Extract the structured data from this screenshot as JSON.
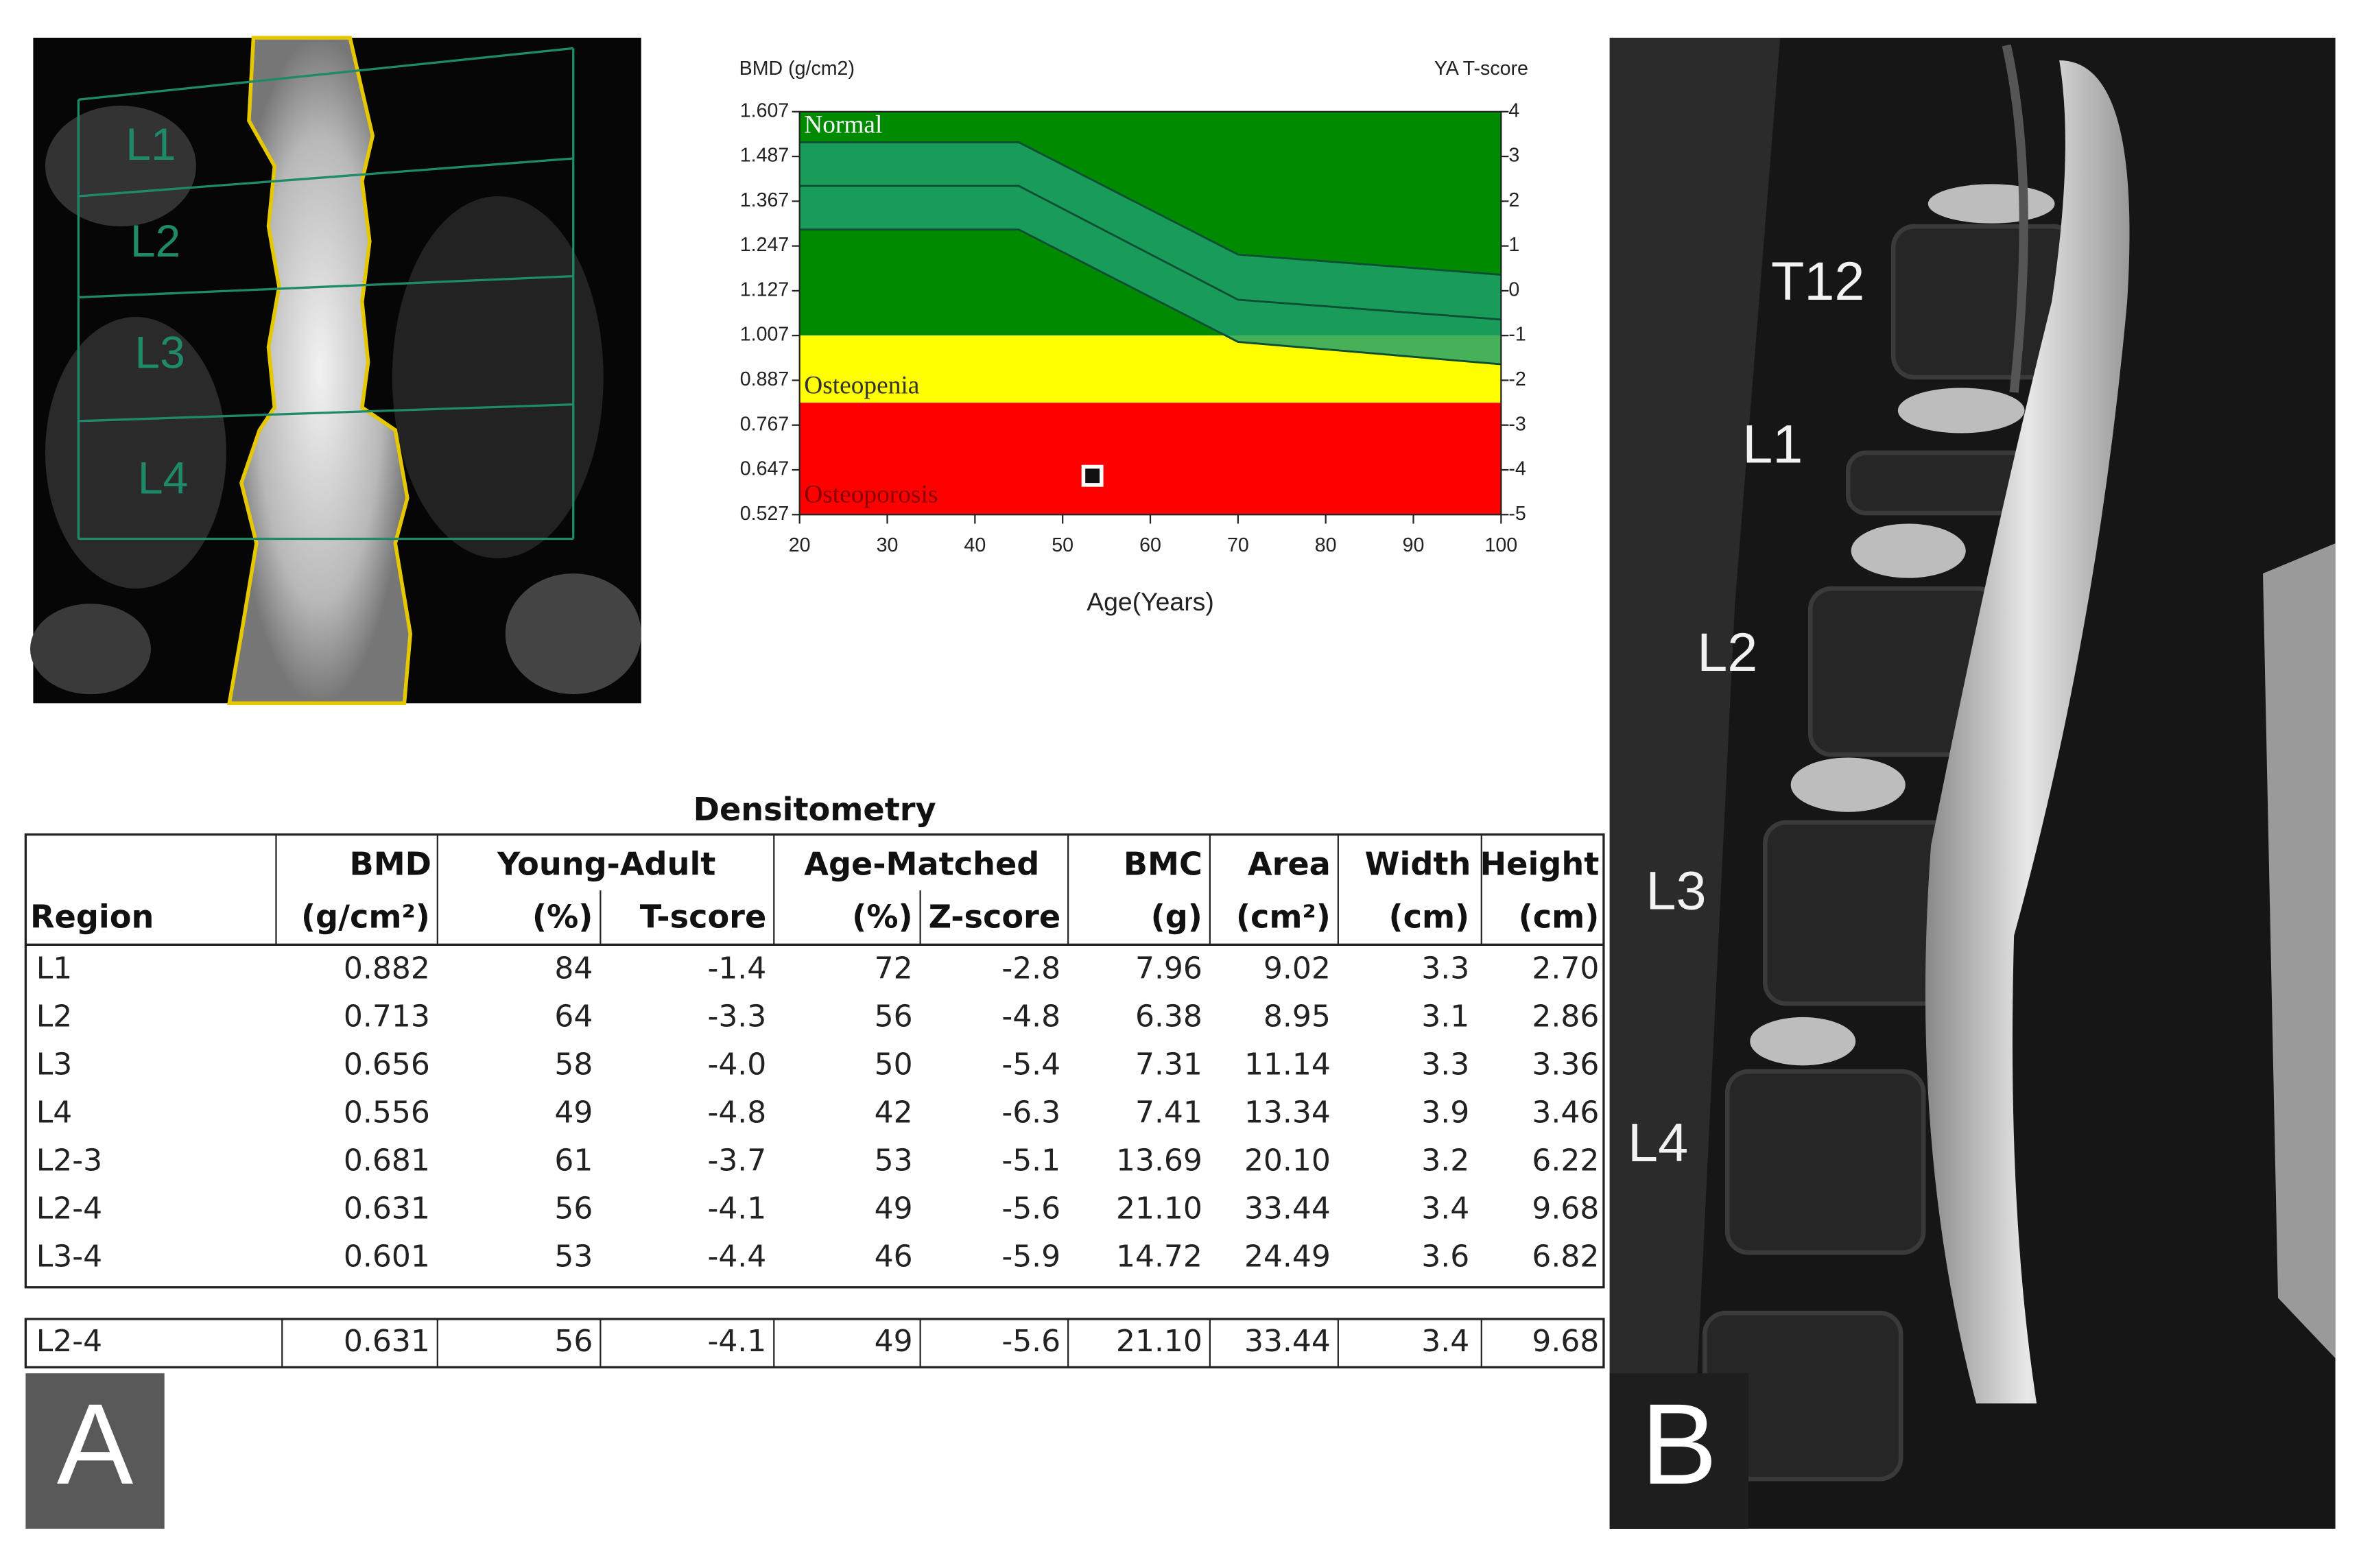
{
  "chart_data": {
    "type": "scatter",
    "ylabel": "BMD (g/cm2)",
    "y2label": "YA T-score",
    "xlabel": "Age(Years)",
    "xlim": [
      20,
      100
    ],
    "xticks": [
      20,
      30,
      40,
      50,
      60,
      70,
      80,
      90,
      100
    ],
    "ylim": [
      0.527,
      1.607
    ],
    "yticks": [
      0.527,
      0.647,
      0.767,
      0.887,
      1.007,
      1.127,
      1.247,
      1.367,
      1.487,
      1.607
    ],
    "y2lim": [
      -5,
      4
    ],
    "y2ticks": [
      4,
      3,
      2,
      1,
      0,
      -1,
      -2,
      -3,
      -4,
      -5
    ],
    "zones": [
      {
        "name": "Normal",
        "color": "#008a00",
        "from": 1.007,
        "to": 1.607,
        "text_color": "#f4f4f4"
      },
      {
        "name": "Osteopenia",
        "color": "#ffff00",
        "from": 0.827,
        "to": 1.007,
        "text_color": "#333"
      },
      {
        "name": "Osteoporosis",
        "color": "#ff0000",
        "from": 0.527,
        "to": 0.827,
        "text_color": "#8b0000"
      }
    ],
    "reference_ages": [
      20,
      45,
      70,
      100
    ],
    "reference_lines": [
      {
        "values": [
          1.525,
          1.525,
          1.224,
          1.17
        ]
      },
      {
        "values": [
          1.408,
          1.408,
          1.103,
          1.05
        ]
      },
      {
        "values": [
          1.291,
          1.291,
          0.99,
          0.93
        ]
      }
    ],
    "band_color": "#1fa06c",
    "line_color": "#0d4f33",
    "x": [
      53.4
    ],
    "values": [
      0.631
    ],
    "color": "#111"
  },
  "table": {
    "title": "Densitometry",
    "header_top": [
      "BMD",
      "Young-Adult",
      "Age-Matched",
      "BMC",
      "Area",
      "Width",
      "Height"
    ],
    "header_bottom": [
      "Region",
      "(g/cm²)",
      "(%)",
      "T-score",
      "(%)",
      "Z-score",
      "(g)",
      "(cm²)",
      "(cm)",
      "(cm)"
    ],
    "rows": [
      [
        "L1",
        "0.882",
        "84",
        "-1.4",
        "72",
        "-2.8",
        "7.96",
        "9.02",
        "3.3",
        "2.70"
      ],
      [
        "L2",
        "0.713",
        "64",
        "-3.3",
        "56",
        "-4.8",
        "6.38",
        "8.95",
        "3.1",
        "2.86"
      ],
      [
        "L3",
        "0.656",
        "58",
        "-4.0",
        "50",
        "-5.4",
        "7.31",
        "11.14",
        "3.3",
        "3.36"
      ],
      [
        "L4",
        "0.556",
        "49",
        "-4.8",
        "42",
        "-6.3",
        "7.41",
        "13.34",
        "3.9",
        "3.46"
      ],
      [
        "L2-3",
        "0.681",
        "61",
        "-3.7",
        "53",
        "-5.1",
        "13.69",
        "20.10",
        "3.2",
        "6.22"
      ],
      [
        "L2-4",
        "0.631",
        "56",
        "-4.1",
        "49",
        "-5.6",
        "21.10",
        "33.44",
        "3.4",
        "9.68"
      ],
      [
        "L3-4",
        "0.601",
        "53",
        "-4.4",
        "46",
        "-5.9",
        "14.72",
        "24.49",
        "3.6",
        "6.82"
      ]
    ],
    "summary": [
      "L2-4",
      "0.631",
      "56",
      "-4.1",
      "49",
      "-5.6",
      "21.10",
      "33.44",
      "3.4",
      "9.68"
    ]
  },
  "dxa_labels": [
    "L1",
    "L2",
    "L3",
    "L4"
  ],
  "mri_labels": [
    "T12",
    "L1",
    "L2",
    "L3",
    "L4"
  ],
  "panels": [
    "A",
    "B"
  ]
}
